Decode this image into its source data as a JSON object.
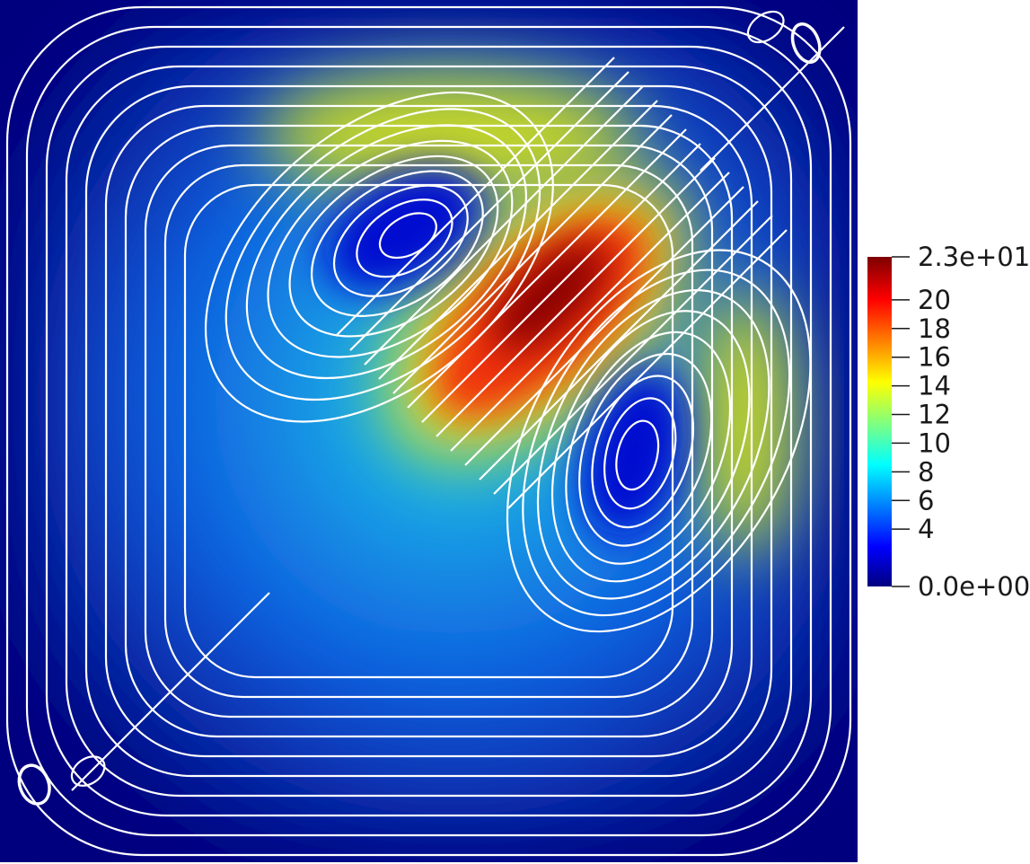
{
  "chart_data": {
    "type": "heatmap",
    "description_free": true,
    "field": {
      "domain": {
        "x": [
          0,
          1
        ],
        "y": [
          0,
          1
        ]
      },
      "peak": {
        "x": 0.65,
        "y": 0.62,
        "value": 23
      },
      "vortex_centers": [
        {
          "x": 0.48,
          "y": 0.73
        },
        {
          "x": 0.74,
          "y": 0.47
        }
      ],
      "corner_vortices": [
        {
          "x": 0.94,
          "y": 0.95
        },
        {
          "x": 0.04,
          "y": 0.09
        }
      ],
      "streamline_color": "#ffffff"
    },
    "colorbar": {
      "range": [
        0,
        23
      ],
      "colormap": "jet",
      "tick_values": [
        23,
        20,
        18,
        16,
        14,
        12,
        10,
        8,
        6,
        4,
        0
      ],
      "tick_labels": [
        "2.3e+01",
        "20",
        "18",
        "16",
        "14",
        "12",
        "10",
        "8",
        "6",
        "4",
        "0.0e+00"
      ],
      "colors": [
        "#00007f",
        "#0000ff",
        "#00ffff",
        "#ffff00",
        "#ff0000",
        "#7f0000"
      ]
    }
  }
}
